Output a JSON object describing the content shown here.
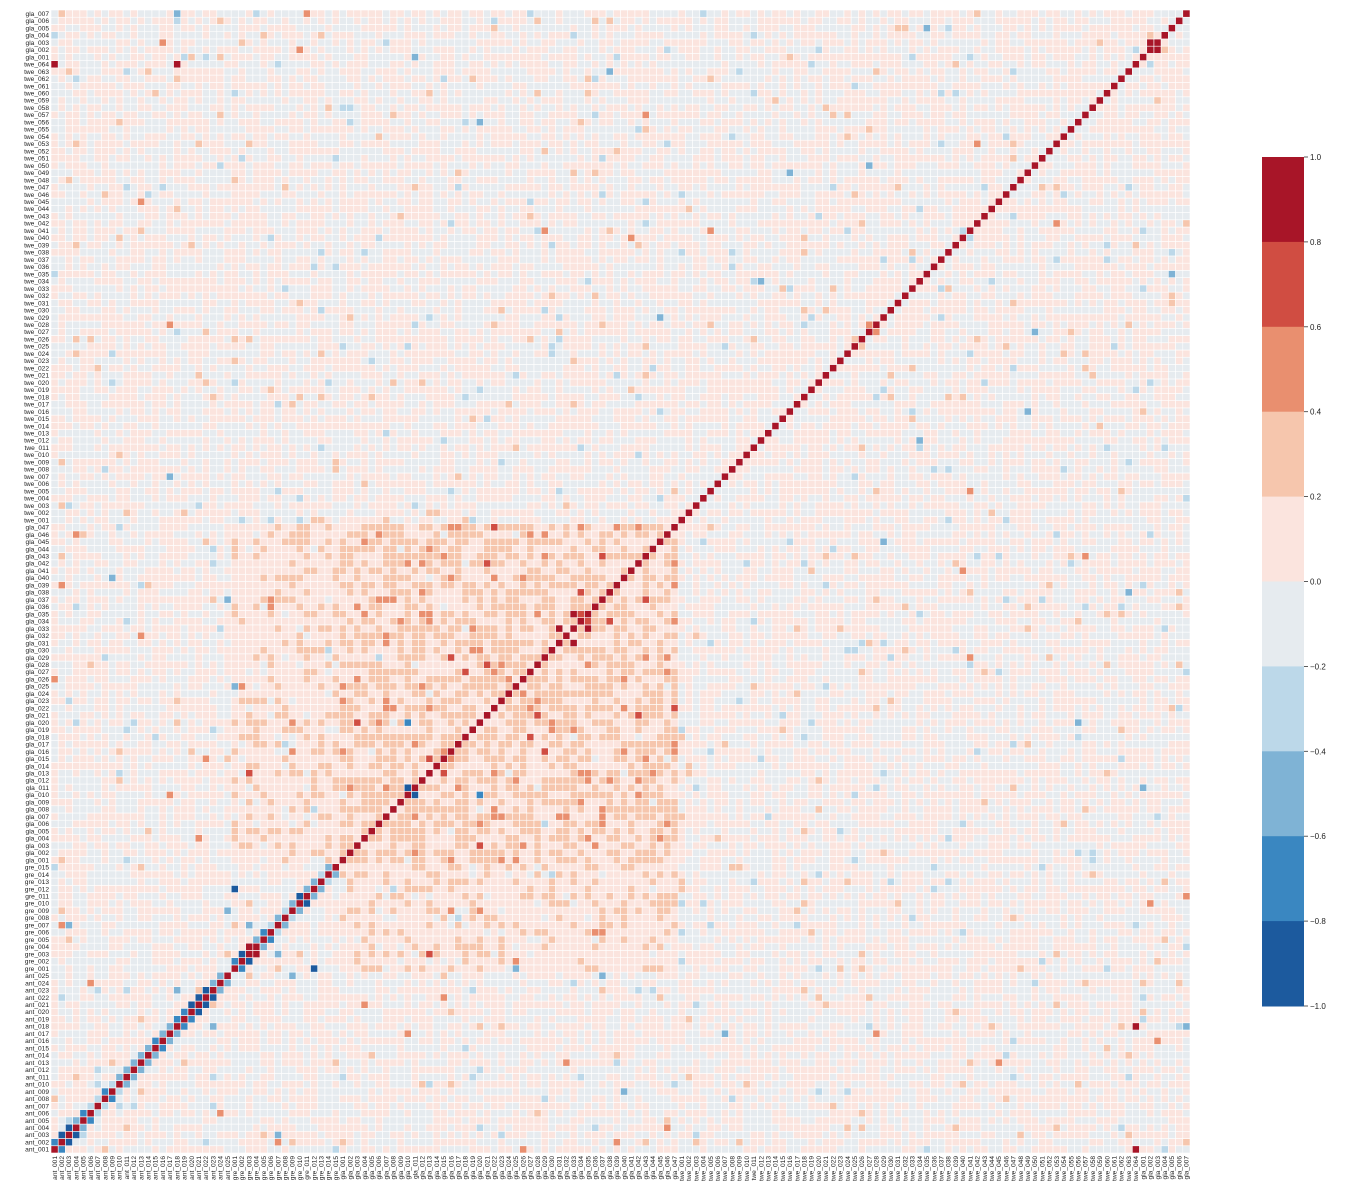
{
  "chart_data": {
    "type": "heatmap",
    "title": "",
    "xlabel": "",
    "ylabel": "",
    "value_range": [
      -1.0,
      1.0
    ],
    "colorbar": {
      "ticks": [
        1.0,
        0.8,
        0.6,
        0.4,
        0.2,
        0.0,
        -0.2,
        -0.4,
        -0.6,
        -0.8,
        -1.0
      ],
      "tick_labels": [
        "1.0",
        "0.8",
        "0.6",
        "0.4",
        "0.2",
        "0.0",
        "−0.2",
        "−0.4",
        "−0.6",
        "−0.8",
        "−1.0"
      ],
      "colors": [
        "#a81528",
        "#d04d42",
        "#e98f6f",
        "#f6c6ad",
        "#fbe4de",
        "#e6ebef",
        "#bcd8e9",
        "#7fb3d5",
        "#3a87c1",
        "#1c5a9e"
      ]
    },
    "colormap": "RdBu_r",
    "diagonal_value": 1.0,
    "variable_groups": [
      {
        "prefix": "ant",
        "count": 25
      },
      {
        "prefix": "gre",
        "count": 15
      },
      {
        "prefix": "gla",
        "count": 47
      },
      {
        "prefix": "twe",
        "count": 64
      },
      {
        "prefix": "gla",
        "count": 7
      }
    ],
    "y_order": "bottom-to-top",
    "notable_values": [
      {
        "row": "gre_002",
        "col": "gre_003",
        "value": -0.9
      },
      {
        "row": "gre_003",
        "col": "gre_002",
        "value": -0.9
      },
      {
        "row": "gre_003",
        "col": "gre_004",
        "value": 0.9
      },
      {
        "row": "gre_010",
        "col": "gre_011",
        "value": -0.85
      },
      {
        "row": "gre_012",
        "col": "gre_001",
        "value": -0.85
      },
      {
        "row": "gla_033",
        "col": "gla_031",
        "value": 0.85
      },
      {
        "row": "gla_033",
        "col": "gla_035",
        "value": 0.85
      },
      {
        "row": "gla_031",
        "col": "gla_033",
        "value": 0.85
      },
      {
        "row": "gla_010",
        "col": "gla_011",
        "value": -0.8
      },
      {
        "row": "gla_020",
        "col": "gla_010",
        "value": -0.75
      },
      {
        "row": "ant_023",
        "col": "ant_022",
        "value": -0.85
      },
      {
        "row": "ant_022",
        "col": "ant_021",
        "value": -0.85
      },
      {
        "row": "ant_021",
        "col": "ant_020",
        "value": -0.8
      },
      {
        "row": "ant_002",
        "col": "ant_003",
        "value": -0.85
      },
      {
        "row": "ant_003",
        "col": "ant_004",
        "value": -0.8
      },
      {
        "row": "twe_064",
        "col": "ant_001",
        "value": 0.95
      },
      {
        "row": "ant_001",
        "col": "twe_064",
        "value": 0.95
      },
      {
        "row": "twe_064",
        "col": "ant_018",
        "value": 0.8
      },
      {
        "row": "gla_002",
        "col": "gla_003",
        "value": 0.85
      }
    ]
  }
}
